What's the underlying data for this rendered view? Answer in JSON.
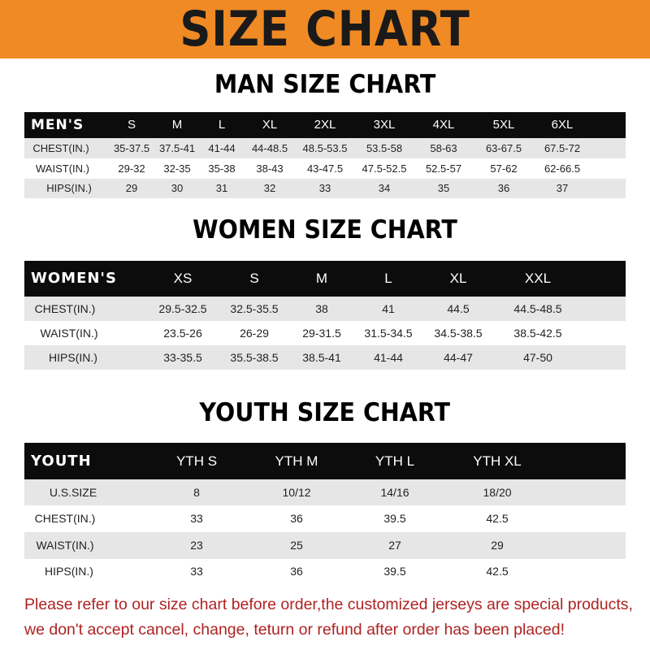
{
  "title": "SIZE CHART",
  "banner_color": "#f08a24",
  "tables": [
    {
      "heading": "MAN SIZE CHART",
      "header": [
        "MEN'S",
        "S",
        "M",
        "L",
        "XL",
        "2XL",
        "3XL",
        "4XL",
        "5XL",
        "6XL"
      ],
      "rows": [
        [
          "CHEST(IN.)",
          "35-37.5",
          "37.5-41",
          "41-44",
          "44-48.5",
          "48.5-53.5",
          "53.5-58",
          "58-63",
          "63-67.5",
          "67.5-72"
        ],
        [
          "WAIST(IN.)",
          "29-32",
          "32-35",
          "35-38",
          "38-43",
          "43-47.5",
          "47.5-52.5",
          "52.5-57",
          "57-62",
          "62-66.5"
        ],
        [
          "HIPS(IN.)",
          "29",
          "30",
          "31",
          "32",
          "33",
          "34",
          "35",
          "36",
          "37"
        ]
      ]
    },
    {
      "heading": "WOMEN SIZE CHART",
      "header": [
        "WOMEN'S",
        "XS",
        "S",
        "M",
        "L",
        "XL",
        "XXL"
      ],
      "rows": [
        [
          "CHEST(IN.)",
          "29.5-32.5",
          "32.5-35.5",
          "38",
          "41",
          "44.5",
          "44.5-48.5"
        ],
        [
          "WAIST(IN.)",
          "23.5-26",
          "26-29",
          "29-31.5",
          "31.5-34.5",
          "34.5-38.5",
          "38.5-42.5"
        ],
        [
          "HIPS(IN.)",
          "33-35.5",
          "35.5-38.5",
          "38.5-41",
          "41-44",
          "44-47",
          "47-50"
        ]
      ]
    },
    {
      "heading": "YOUTH SIZE CHART",
      "header": [
        "YOUTH",
        "YTH S",
        "YTH M",
        "YTH L",
        "YTH XL"
      ],
      "rows": [
        [
          "U.S.SIZE",
          "8",
          "10/12",
          "14/16",
          "18/20"
        ],
        [
          "CHEST(IN.)",
          "33",
          "36",
          "39.5",
          "42.5"
        ],
        [
          "WAIST(IN.)",
          "23",
          "25",
          "27",
          "29"
        ],
        [
          "HIPS(IN.)",
          "33",
          "36",
          "39.5",
          "42.5"
        ]
      ]
    }
  ],
  "footer": [
    "Please refer to our size chart before order,the customized jerseys are special products,",
    "we don't accept cancel, change, teturn or refund after order has been placed!"
  ]
}
